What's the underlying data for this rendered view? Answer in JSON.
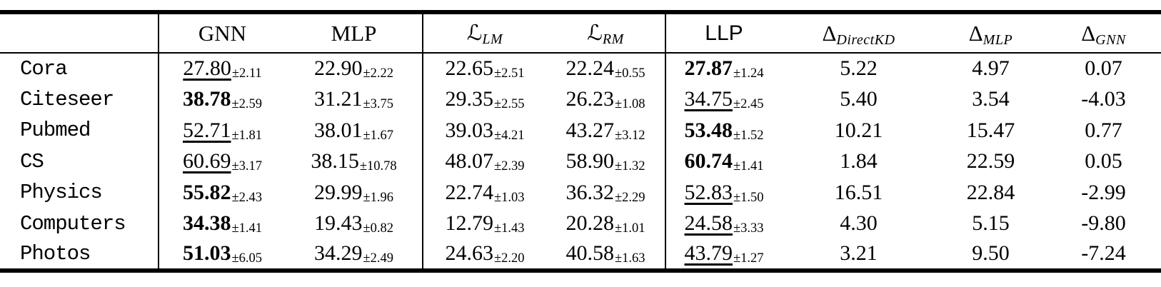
{
  "table": {
    "corner_label": "",
    "pm_prefix": "±",
    "columns": [
      {
        "id": "gnn",
        "main": "GNN",
        "sub": "",
        "font": "serif",
        "sep_right": false
      },
      {
        "id": "mlp",
        "main": "MLP",
        "sub": "",
        "font": "serif",
        "sep_right": true
      },
      {
        "id": "l-lm",
        "main": "ℒ",
        "sub": "LM",
        "font": "script",
        "sep_right": false
      },
      {
        "id": "l-rm",
        "main": "ℒ",
        "sub": "RM",
        "font": "script",
        "sep_right": true
      },
      {
        "id": "llp",
        "main": "LLP",
        "sub": "",
        "font": "sans",
        "sep_right": false
      },
      {
        "id": "delta-directkd",
        "main": "Δ",
        "sub": "DirectKD",
        "font": "serif",
        "sep_right": false
      },
      {
        "id": "delta-mlp",
        "main": "Δ",
        "sub": "MLP",
        "font": "serif",
        "sep_right": false
      },
      {
        "id": "delta-gnn",
        "main": "Δ",
        "sub": "GNN",
        "font": "serif",
        "sep_right": false
      }
    ],
    "rows": [
      {
        "dataset": "Cora",
        "cells": [
          {
            "v": "27.80",
            "pm": "2.11",
            "style": "underline"
          },
          {
            "v": "22.90",
            "pm": "2.22",
            "style": "normal"
          },
          {
            "v": "22.65",
            "pm": "2.51",
            "style": "normal"
          },
          {
            "v": "22.24",
            "pm": "0.55",
            "style": "normal"
          },
          {
            "v": "27.87",
            "pm": "1.24",
            "style": "bold"
          },
          {
            "v": "5.22",
            "pm": null,
            "style": "normal"
          },
          {
            "v": "4.97",
            "pm": null,
            "style": "normal"
          },
          {
            "v": "0.07",
            "pm": null,
            "style": "normal"
          }
        ]
      },
      {
        "dataset": "Citeseer",
        "cells": [
          {
            "v": "38.78",
            "pm": "2.59",
            "style": "bold"
          },
          {
            "v": "31.21",
            "pm": "3.75",
            "style": "normal"
          },
          {
            "v": "29.35",
            "pm": "2.55",
            "style": "normal"
          },
          {
            "v": "26.23",
            "pm": "1.08",
            "style": "normal"
          },
          {
            "v": "34.75",
            "pm": "2.45",
            "style": "underline"
          },
          {
            "v": "5.40",
            "pm": null,
            "style": "normal"
          },
          {
            "v": "3.54",
            "pm": null,
            "style": "normal"
          },
          {
            "v": "-4.03",
            "pm": null,
            "style": "normal"
          }
        ]
      },
      {
        "dataset": "Pubmed",
        "cells": [
          {
            "v": "52.71",
            "pm": "1.81",
            "style": "underline"
          },
          {
            "v": "38.01",
            "pm": "1.67",
            "style": "normal"
          },
          {
            "v": "39.03",
            "pm": "4.21",
            "style": "normal"
          },
          {
            "v": "43.27",
            "pm": "3.12",
            "style": "normal"
          },
          {
            "v": "53.48",
            "pm": "1.52",
            "style": "bold"
          },
          {
            "v": "10.21",
            "pm": null,
            "style": "normal"
          },
          {
            "v": "15.47",
            "pm": null,
            "style": "normal"
          },
          {
            "v": "0.77",
            "pm": null,
            "style": "normal"
          }
        ]
      },
      {
        "dataset": "CS",
        "cells": [
          {
            "v": "60.69",
            "pm": "3.17",
            "style": "underline"
          },
          {
            "v": "38.15",
            "pm": "10.78",
            "style": "normal"
          },
          {
            "v": "48.07",
            "pm": "2.39",
            "style": "normal"
          },
          {
            "v": "58.90",
            "pm": "1.32",
            "style": "normal"
          },
          {
            "v": "60.74",
            "pm": "1.41",
            "style": "bold"
          },
          {
            "v": "1.84",
            "pm": null,
            "style": "normal"
          },
          {
            "v": "22.59",
            "pm": null,
            "style": "normal"
          },
          {
            "v": "0.05",
            "pm": null,
            "style": "normal"
          }
        ]
      },
      {
        "dataset": "Physics",
        "cells": [
          {
            "v": "55.82",
            "pm": "2.43",
            "style": "bold"
          },
          {
            "v": "29.99",
            "pm": "1.96",
            "style": "normal"
          },
          {
            "v": "22.74",
            "pm": "1.03",
            "style": "normal"
          },
          {
            "v": "36.32",
            "pm": "2.29",
            "style": "normal"
          },
          {
            "v": "52.83",
            "pm": "1.50",
            "style": "underline"
          },
          {
            "v": "16.51",
            "pm": null,
            "style": "normal"
          },
          {
            "v": "22.84",
            "pm": null,
            "style": "normal"
          },
          {
            "v": "-2.99",
            "pm": null,
            "style": "normal"
          }
        ]
      },
      {
        "dataset": "Computers",
        "cells": [
          {
            "v": "34.38",
            "pm": "1.41",
            "style": "bold"
          },
          {
            "v": "19.43",
            "pm": "0.82",
            "style": "normal"
          },
          {
            "v": "12.79",
            "pm": "1.43",
            "style": "normal"
          },
          {
            "v": "20.28",
            "pm": "1.01",
            "style": "normal"
          },
          {
            "v": "24.58",
            "pm": "3.33",
            "style": "underline"
          },
          {
            "v": "4.30",
            "pm": null,
            "style": "normal"
          },
          {
            "v": "5.15",
            "pm": null,
            "style": "normal"
          },
          {
            "v": "-9.80",
            "pm": null,
            "style": "normal"
          }
        ]
      },
      {
        "dataset": "Photos",
        "cells": [
          {
            "v": "51.03",
            "pm": "6.05",
            "style": "bold"
          },
          {
            "v": "34.29",
            "pm": "2.49",
            "style": "normal"
          },
          {
            "v": "24.63",
            "pm": "2.20",
            "style": "normal"
          },
          {
            "v": "40.58",
            "pm": "1.63",
            "style": "normal"
          },
          {
            "v": "43.79",
            "pm": "1.27",
            "style": "underline"
          },
          {
            "v": "3.21",
            "pm": null,
            "style": "normal"
          },
          {
            "v": "9.50",
            "pm": null,
            "style": "normal"
          },
          {
            "v": "-7.24",
            "pm": null,
            "style": "normal"
          }
        ]
      }
    ]
  }
}
